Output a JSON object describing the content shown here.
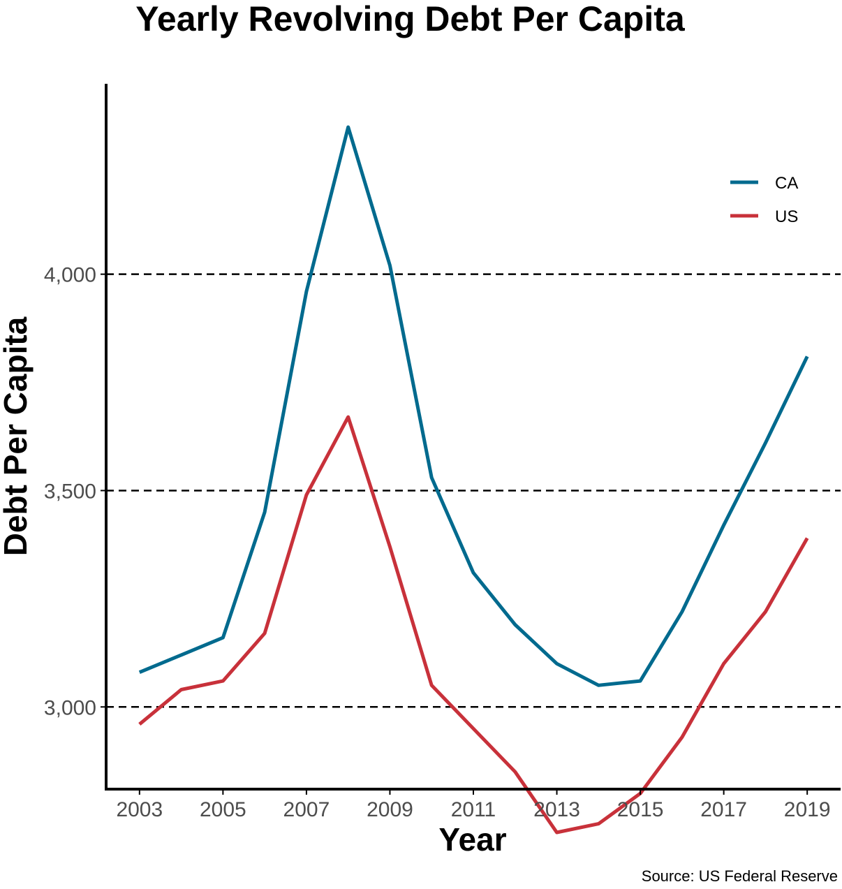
{
  "chart_data": {
    "type": "line",
    "title": "Yearly Revolving Debt Per Capita",
    "xlabel": "Year",
    "ylabel": "Debt Per Capita",
    "caption": "Source: US Federal Reserve",
    "x": [
      2003,
      2004,
      2005,
      2006,
      2007,
      2008,
      2009,
      2010,
      2011,
      2012,
      2013,
      2014,
      2015,
      2016,
      2017,
      2018,
      2019
    ],
    "x_ticks": [
      "2003",
      "2005",
      "2007",
      "2009",
      "2011",
      "2013",
      "2015",
      "2017",
      "2019"
    ],
    "y_ticks": [
      "3,000",
      "3,500",
      "4,000"
    ],
    "ylim": [
      2810,
      4440
    ],
    "xlim": [
      2002.2,
      2019.8
    ],
    "grid": "horizontal dashed at major y ticks",
    "legend_position": "top-right",
    "series": [
      {
        "name": "CA",
        "color": "#006a8e",
        "values": [
          3080,
          3120,
          3160,
          3450,
          3960,
          4340,
          4020,
          3530,
          3310,
          3190,
          3100,
          3050,
          3060,
          3220,
          3420,
          3610,
          3810
        ]
      },
      {
        "name": "US",
        "color": "#c8313a",
        "values": [
          2960,
          3040,
          3060,
          3170,
          3490,
          3670,
          3370,
          3050,
          2950,
          2850,
          2710,
          2730,
          2800,
          2930,
          3100,
          3220,
          3390
        ]
      }
    ]
  }
}
